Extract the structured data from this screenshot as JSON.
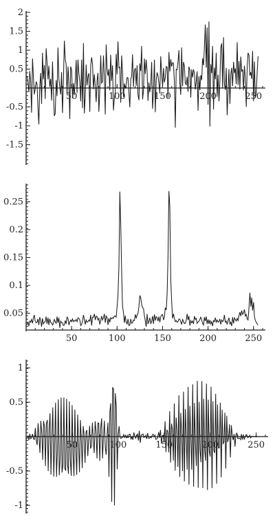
{
  "chart_data": [
    {
      "type": "line",
      "title": "",
      "xlabel": "",
      "ylabel": "",
      "xlim": [
        0,
        260
      ],
      "ylim": [
        -2,
        2
      ],
      "xticks": [
        50,
        100,
        150,
        200,
        250
      ],
      "yticks": [
        -1.5,
        -1,
        -0.5,
        0.5,
        1,
        1.5,
        2
      ],
      "xtick_labels": [
        "50",
        "100",
        "150",
        "200",
        "250"
      ],
      "ytick_labels": [
        "-1.5",
        "-1",
        "-0.5",
        "0.5",
        "1",
        "1.5",
        "2"
      ],
      "grid": false,
      "series": [
        {
          "y": [
            0.32,
            0.16,
            -0.11,
            0.45,
            0.15,
            -0.65,
            0.78,
            0.31,
            -0.17,
            -0.03,
            0.17,
            0.1,
            -0.51,
            -0.96,
            0.03,
            0.4,
            -0.42,
            0.93,
            0.23,
            0.61,
            -0.29,
            1.05,
            0.68,
            0.23,
            0.59,
            0.03,
            0.24,
            -0.33,
            0.7,
            -0.11,
            -0.74,
            -0.68,
            0.21,
            -0.21,
            1.07,
            0.25,
            0.02,
            -0.17,
            0.42,
            -0.66,
            0.17,
            1.25,
            0.76,
            0.63,
            -0.17,
            0.57,
            0.15,
            -0.82,
            0.57,
            0.47,
            -0.27,
            0.13,
            -0.19,
            0.18,
            0.74,
            -0.13,
            0.75,
            0.39,
            0.16,
            -0.35,
            0.75,
            -0.53,
            1.19,
            -0.67,
            -0.21,
            0.62,
            0.07,
            0.31,
            0.39,
            -0.63,
            0.59,
            0.81,
            0.63,
            -0.03,
            0.36,
            0.04,
            -0.37,
            0.2,
            0.4,
            -0.63,
            -0.04,
            0.86,
            0.13,
            0.17,
            0.86,
            0.28,
            -0.7,
            1.15,
            0.49,
            0.32,
            0.5,
            -0.06,
            0.88,
            0.19,
            0.6,
            -0.59,
            -0.28,
            -0.09,
            0.9,
            0.36,
            1.23,
            0.53,
            0.55,
            -0.39,
            0.86,
            0.45,
            -0.24,
            0.12,
            -0.01,
            0.09,
            0.28,
            0.27,
            -0.11,
            -0.51,
            0.24,
            0.31,
            0.89,
            0.03,
            0.45,
            0.53,
            0.06,
            0.6,
            -0.18,
            -0.32,
            0.65,
            0.45,
            1.11,
            -0.3,
            -0.07,
            0.78,
            0.37,
            0.75,
            0.43,
            -0.34,
            0.15,
            -0.11,
            0.07,
            0.69,
            -0.55,
            -0.12,
            0.75,
            -0.64,
            0.2,
            0.41,
            0.32,
            0.12,
            -0.14,
            0.84,
            0.38,
            0.04,
            0.53,
            0.15,
            0.27,
            0.57,
            0.55,
            -0.26,
            0.95,
            0.44,
            0.76,
            0.57,
            0.67,
            0.66,
            0.14,
            -1.05,
            0.49,
            0.48,
            0.71,
            1.0,
            0.12,
            -0.18,
            1.07,
            0.05,
            0.69,
            0.58,
            0.13,
            0.09,
            0.3,
            -0.1,
            0.56,
            0.48,
            -0.25,
            0.49,
            0.28,
            0.49,
            0.39,
            -0.04,
            0.16,
            0.44,
            -0.6,
            0.31,
            -0.05,
            0.34,
            0.21,
            0.79,
            0.6,
            1.07,
            1.68,
            0.54,
            1.6,
            -0.44,
            1.76,
            -1.02,
            0.63,
            0.39,
            1.11,
            -0.57,
            0.54,
            0.23,
            0.93,
            -0.23,
            0.35,
            -0.35,
            0.17,
            1.06,
            1.18,
            -0.01,
            1.34,
            0.11,
            -0.05,
            0.53,
            -0.72,
            -0.07,
            0.5,
            -0.42,
            0.37,
            0.53,
            0.05,
            0.69,
            0.39,
            0.52,
            0.1,
            1.21,
            0.08,
            0.71,
            -0.04,
            0.83,
            0.43,
            0.49,
            -0.06,
            0.59,
            0.24,
            -0.5,
            0.52,
            0.93,
            0.86,
            0.33,
            0.42,
            0.24,
            0.98,
            -0.35,
            0.7,
            -0.25,
            -0.17,
            0.44,
            0.84
          ]
        }
      ]
    },
    {
      "type": "line",
      "title": "",
      "xlabel": "",
      "ylabel": "",
      "xlim": [
        0,
        260
      ],
      "ylim": [
        0.02,
        0.28
      ],
      "xticks": [
        50,
        100,
        150,
        200,
        250
      ],
      "yticks": [
        0.05,
        0.1,
        0.15,
        0.2,
        0.25
      ],
      "xtick_labels": [
        "50",
        "100",
        "150",
        "200",
        "250"
      ],
      "ytick_labels": [
        "0.05",
        "0.1",
        "0.15",
        "0.2",
        "0.25"
      ],
      "grid": false,
      "series": [
        {
          "y": [
            0.029,
            0.035,
            0.027,
            0.036,
            0.034,
            0.039,
            0.032,
            0.042,
            0.047,
            0.036,
            0.033,
            0.034,
            0.04,
            0.029,
            0.043,
            0.037,
            0.026,
            0.041,
            0.031,
            0.034,
            0.035,
            0.044,
            0.031,
            0.042,
            0.029,
            0.04,
            0.034,
            0.033,
            0.029,
            0.032,
            0.039,
            0.035,
            0.032,
            0.044,
            0.033,
            0.042,
            0.024,
            0.036,
            0.033,
            0.033,
            0.028,
            0.029,
            0.037,
            0.031,
            0.043,
            0.041,
            0.029,
            0.034,
            0.038,
            0.035,
            0.04,
            0.035,
            0.037,
            0.036,
            0.039,
            0.035,
            0.042,
            0.041,
            0.038,
            0.028,
            0.03,
            0.036,
            0.047,
            0.039,
            0.03,
            0.038,
            0.034,
            0.035,
            0.038,
            0.036,
            0.047,
            0.028,
            0.043,
            0.043,
            0.049,
            0.038,
            0.045,
            0.044,
            0.038,
            0.041,
            0.03,
            0.037,
            0.045,
            0.038,
            0.042,
            0.049,
            0.033,
            0.045,
            0.042,
            0.029,
            0.041,
            0.034,
            0.042,
            0.04,
            0.042,
            0.041,
            0.045,
            0.045,
            0.043,
            0.062,
            0.081,
            0.135,
            0.268,
            0.211,
            0.128,
            0.063,
            0.051,
            0.033,
            0.046,
            0.034,
            0.031,
            0.04,
            0.028,
            0.029,
            0.04,
            0.032,
            0.033,
            0.038,
            0.037,
            0.048,
            0.041,
            0.047,
            0.05,
            0.062,
            0.082,
            0.078,
            0.066,
            0.06,
            0.059,
            0.046,
            0.037,
            0.026,
            0.049,
            0.031,
            0.036,
            0.042,
            0.031,
            0.036,
            0.045,
            0.031,
            0.048,
            0.037,
            0.044,
            0.042,
            0.036,
            0.044,
            0.034,
            0.044,
            0.047,
            0.048,
            0.038,
            0.043,
            0.06,
            0.056,
            0.085,
            0.152,
            0.269,
            0.241,
            0.11,
            0.071,
            0.041,
            0.049,
            0.041,
            0.035,
            0.037,
            0.034,
            0.035,
            0.04,
            0.039,
            0.035,
            0.03,
            0.039,
            0.035,
            0.032,
            0.032,
            0.038,
            0.049,
            0.038,
            0.045,
            0.028,
            0.037,
            0.033,
            0.036,
            0.031,
            0.045,
            0.039,
            0.041,
            0.032,
            0.034,
            0.036,
            0.039,
            0.043,
            0.038,
            0.032,
            0.029,
            0.043,
            0.036,
            0.044,
            0.031,
            0.039,
            0.031,
            0.038,
            0.031,
            0.035,
            0.027,
            0.037,
            0.035,
            0.042,
            0.034,
            0.038,
            0.034,
            0.035,
            0.04,
            0.03,
            0.038,
            0.035,
            0.037,
            0.047,
            0.034,
            0.036,
            0.03,
            0.037,
            0.042,
            0.031,
            0.034,
            0.027,
            0.043,
            0.032,
            0.042,
            0.039,
            0.036,
            0.041,
            0.037,
            0.046,
            0.052,
            0.045,
            0.055,
            0.048,
            0.05,
            0.057,
            0.045,
            0.048,
            0.04,
            0.038,
            0.061,
            0.087,
            0.062,
            0.078,
            0.055,
            0.07,
            0.044,
            0.037,
            0.034,
            0.031,
            0.029
          ]
        }
      ]
    },
    {
      "type": "line",
      "title": "",
      "xlabel": "",
      "ylabel": "",
      "xlim": [
        0,
        260
      ],
      "ylim": [
        -1.1,
        1.1
      ],
      "xticks": [
        50,
        100,
        150,
        200,
        250
      ],
      "yticks": [
        -1,
        -0.5,
        0.5,
        1
      ],
      "xtick_labels": [
        "50",
        "100",
        "150",
        "200",
        "250"
      ],
      "ytick_labels": [
        "-1",
        "-0.5",
        "0.5",
        "1"
      ],
      "grid": false,
      "series": [
        {
          "y": [
            -0.034,
            0.016,
            -0.052,
            0.042,
            -0.031,
            -0.012,
            0.038,
            -0.033,
            -0.042,
            0.127,
            -0.053,
            -0.123,
            0.195,
            -0.011,
            -0.237,
            0.23,
            0.053,
            -0.337,
            0.227,
            0.144,
            -0.427,
            0.186,
            0.242,
            -0.501,
            0.114,
            0.339,
            -0.554,
            0.017,
            0.425,
            -0.582,
            -0.094,
            0.494,
            -0.585,
            -0.209,
            0.542,
            -0.564,
            -0.317,
            0.567,
            -0.523,
            -0.412,
            0.569,
            -0.466,
            -0.488,
            0.549,
            -0.398,
            -0.541,
            0.511,
            -0.325,
            -0.57,
            0.458,
            -0.251,
            -0.575,
            0.393,
            -0.178,
            -0.557,
            0.32,
            -0.108,
            -0.518,
            0.24,
            -0.04,
            -0.459,
            0.155,
            0.028,
            -0.381,
            0.063,
            0.096,
            -0.284,
            -0.036,
            0.157,
            -0.173,
            -0.14,
            0.204,
            -0.05,
            -0.239,
            0.223,
            0.078,
            -0.318,
            0.199,
            0.194,
            -0.354,
            0.118,
            0.265,
            -0.318,
            -0.03,
            0.231,
            -0.143,
            -0.263,
            0.038,
            0.204,
            -0.585,
            0.368,
            0.484,
            -0.949,
            0.717,
            0.687,
            -1.0,
            0.631,
            0.428,
            -0.476,
            0.021,
            0.152,
            -0.006,
            -0.027,
            -0.018,
            -0.009,
            0.028,
            -0.011,
            0.02,
            -0.019,
            -0.005,
            -0.014,
            0.036,
            0.035,
            -0.035,
            -0.005,
            -0.046,
            0.06,
            0.015,
            -0.024,
            0.004,
            0.036,
            -0.057,
            0.084,
            -0.091,
            0.024,
            0.026,
            0.038,
            -0.012,
            0.006,
            -0.003,
            -0.026,
            0.051,
            -0.024,
            -0.023,
            -0.008,
            -0.017,
            0.019,
            0.035,
            0.01,
            0.009,
            -0.04,
            -0.033,
            -0.012,
            0.066,
            -0.016,
            0.097,
            -0.103,
            0.012,
            0.021,
            -0.083,
            0.222,
            -0.225,
            0.101,
            0.067,
            -0.229,
            0.37,
            -0.376,
            0.189,
            0.1,
            -0.349,
            0.482,
            -0.495,
            0.278,
            0.094,
            -0.441,
            0.6,
            -0.586,
            0.346,
            0.052,
            -0.503,
            0.654,
            -0.65,
            0.402,
            0.006,
            -0.481,
            0.722,
            -0.699,
            0.448,
            -0.061,
            -0.481,
            0.761,
            -0.729,
            0.49,
            -0.112,
            -0.427,
            0.81,
            -0.745,
            0.505,
            -0.195,
            -0.373,
            0.806,
            -0.749,
            0.549,
            -0.207,
            -0.35,
            0.772,
            -0.776,
            0.537,
            -0.209,
            -0.291,
            0.725,
            -0.749,
            0.515,
            -0.202,
            -0.237,
            0.622,
            -0.685,
            0.468,
            -0.166,
            -0.163,
            0.494,
            -0.593,
            0.391,
            -0.103,
            -0.079,
            0.347,
            -0.465,
            0.304,
            -0.08,
            -0.018,
            0.178,
            -0.304,
            0.166,
            0.021,
            -0.051,
            0.037,
            -0.146,
            0.033,
            0.051,
            -0.028,
            -0.021,
            -0.023,
            -0.044,
            0.036,
            -0.043,
            0.03,
            -0.038,
            -0.006,
            0.028,
            0.015,
            -0.016,
            0.001,
            0.019,
            -0.019,
            0.003,
            0.005,
            0.002,
            -0.002,
            0.005,
            -0.004,
            0.0,
            0.003,
            -0.001,
            -0.001,
            0.001,
            0.0,
            0.0,
            0.0,
            0.0,
            0.0
          ]
        }
      ]
    }
  ]
}
